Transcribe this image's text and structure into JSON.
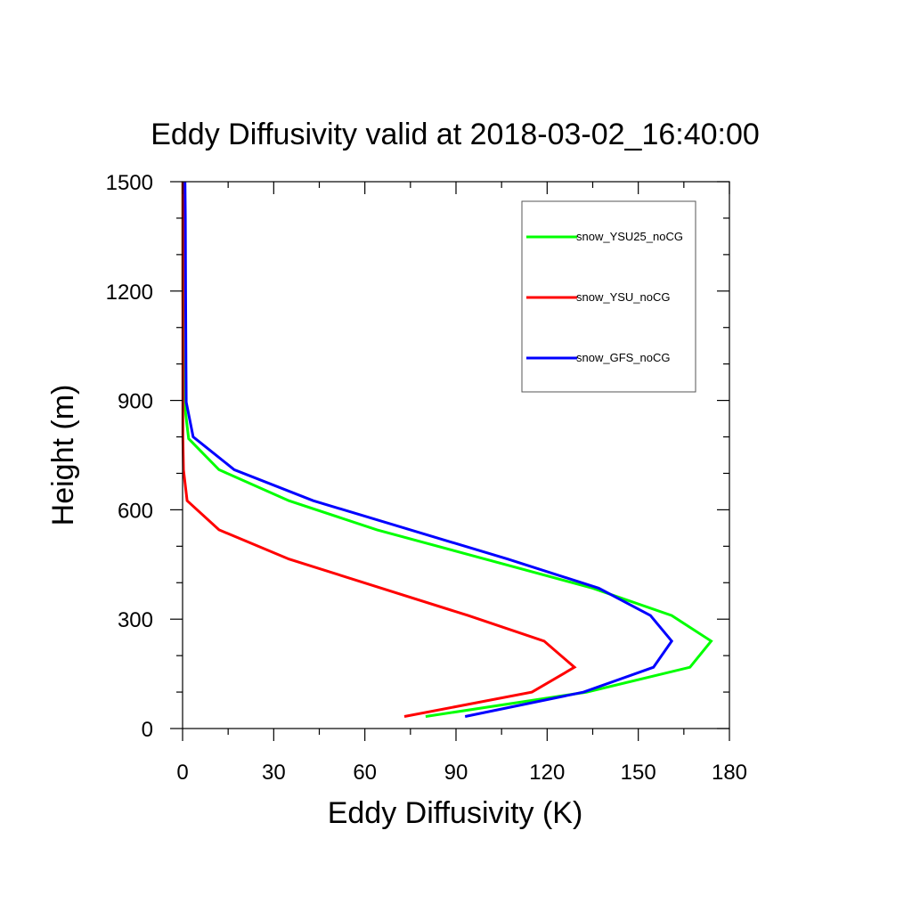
{
  "chart_data": {
    "type": "line",
    "title": "Eddy Diffusivity valid at 2018-03-02_16:40:00",
    "xlabel": "Eddy Diffusivity (K)",
    "ylabel": "Height (m)",
    "xlim": [
      0,
      180
    ],
    "ylim": [
      0,
      1500
    ],
    "xticks": [
      0,
      30,
      60,
      90,
      120,
      150,
      180
    ],
    "xtick_labels": [
      "0",
      "30",
      "60",
      "90",
      "120",
      "150",
      "180"
    ],
    "yticks": [
      0,
      300,
      600,
      900,
      1200,
      1500
    ],
    "ytick_labels": [
      "0",
      "300",
      "600",
      "900",
      "1200",
      "1500"
    ],
    "grid": false,
    "legend_position": "top-right",
    "series": [
      {
        "name": "snow_YSU25_noCG",
        "color": "#00ff00",
        "x": [
          80,
          133,
          167,
          174,
          161,
          135,
          64,
          35,
          12,
          2,
          0.5,
          0.3,
          0.2,
          0.1,
          0.1,
          0.1
        ],
        "y": [
          33,
          100,
          168,
          240,
          310,
          385,
          545,
          625,
          710,
          795,
          900,
          1000,
          1100,
          1200,
          1300,
          1500
        ]
      },
      {
        "name": "snow_YSU_noCG",
        "color": "#ff0000",
        "x": [
          73,
          115,
          129,
          119,
          94,
          35,
          12,
          1.5,
          0.3,
          0.1,
          0.1,
          0.1,
          0.1,
          0.1
        ],
        "y": [
          33,
          100,
          168,
          240,
          310,
          465,
          545,
          625,
          710,
          800,
          900,
          1100,
          1300,
          1500
        ]
      },
      {
        "name": "snow_GFS_noCG",
        "color": "#0000ff",
        "x": [
          93,
          132,
          155,
          161,
          154,
          137,
          107,
          43,
          17,
          3.5,
          1.2,
          1.1,
          1,
          0.9,
          0.8
        ],
        "y": [
          33,
          100,
          168,
          240,
          310,
          385,
          465,
          625,
          710,
          800,
          895,
          1000,
          1200,
          1400,
          1500
        ]
      }
    ]
  }
}
